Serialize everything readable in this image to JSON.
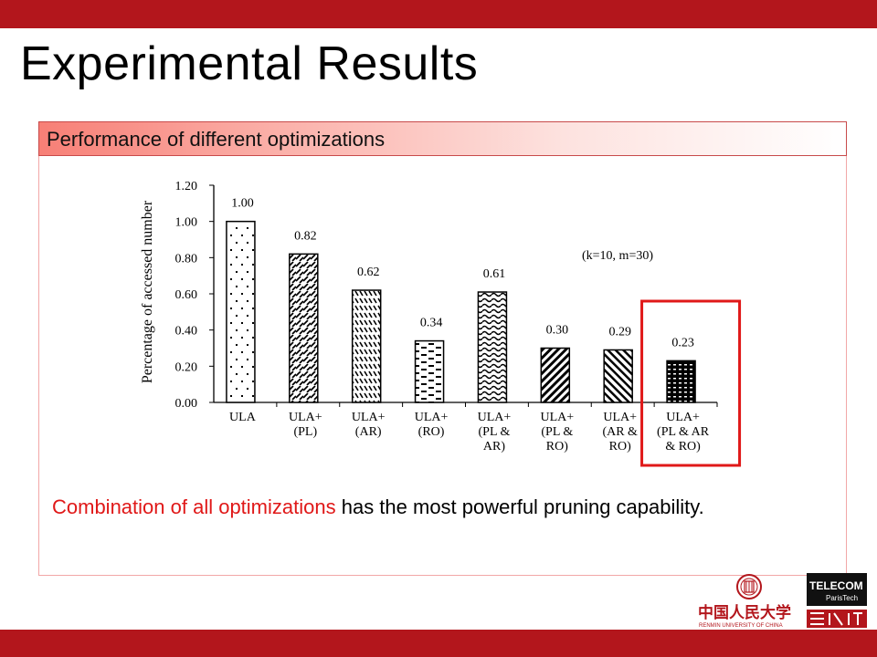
{
  "slide": {
    "title": "Experimental Results",
    "section_header": "Performance of different optimizations",
    "caption_highlight": "Combination of all optimizations",
    "caption_rest": " has the most powerful pruning capability."
  },
  "colors": {
    "brand_red": "#b3161c",
    "highlight_box": "#e01818"
  },
  "chart_data": {
    "type": "bar",
    "ylabel": "Percentage of accessed number",
    "ylim": [
      0,
      1.2
    ],
    "yticks": [
      "0.00",
      "0.20",
      "0.40",
      "0.60",
      "0.80",
      "1.00",
      "1.20"
    ],
    "annotation": "(k=10, m=30)",
    "grid": false,
    "categories": [
      [
        "ULA"
      ],
      [
        "ULA+",
        "(PL)"
      ],
      [
        "ULA+",
        "(AR)"
      ],
      [
        "ULA+",
        "(RO)"
      ],
      [
        "ULA+",
        "(PL &",
        "AR)"
      ],
      [
        "ULA+",
        "(PL &",
        "RO)"
      ],
      [
        "ULA+",
        "(AR &",
        "RO)"
      ],
      [
        "ULA+",
        "(PL & AR",
        "& RO)"
      ]
    ],
    "values": [
      1.0,
      0.82,
      0.62,
      0.34,
      0.61,
      0.3,
      0.29,
      0.23
    ],
    "value_labels": [
      "1.00",
      "0.82",
      "0.62",
      "0.34",
      "0.61",
      "0.30",
      "0.29",
      "0.23"
    ],
    "highlighted_index": 7
  },
  "logos": {
    "renmin_name": "中国人民大学",
    "renmin_sub": "RENMIN UNIVERSITY OF CHINA",
    "telecom_1": "TELECOM",
    "telecom_2": "ParisTech"
  }
}
